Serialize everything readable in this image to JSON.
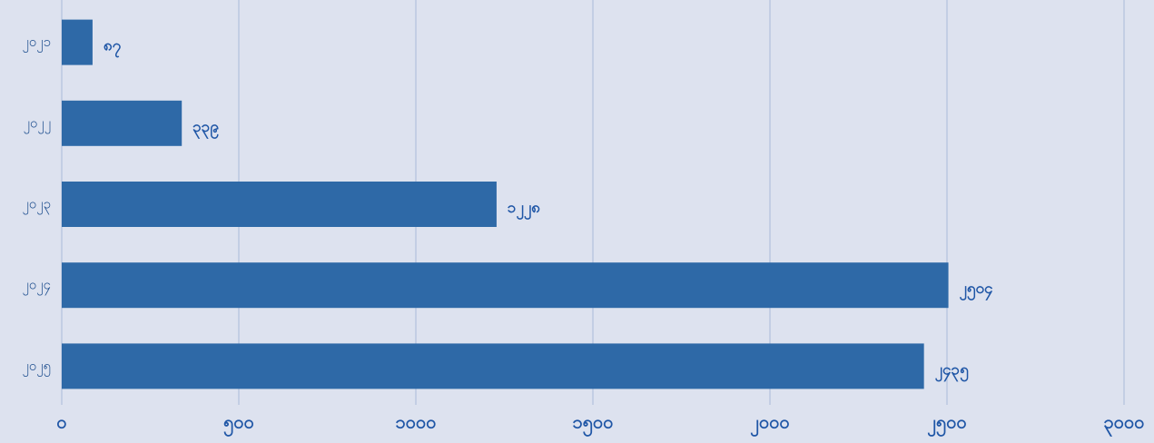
{
  "chart_data": {
    "type": "bar",
    "orientation": "horizontal",
    "categories": [
      "၂၀၂၁",
      "၂၀၂၂",
      "၂၀၂၃",
      "၂၀၂၄",
      "၂၀၂၅"
    ],
    "values": [
      87,
      339,
      1228,
      2504,
      2435
    ],
    "value_labels": [
      "၈၇",
      "၃၃၉",
      "၁၂၂၈",
      "၂၅၀၄",
      "၂၄၃၅"
    ],
    "color": "#2e69a7",
    "xlim": [
      0,
      3000
    ],
    "xticks": [
      {
        "value": 0,
        "label": "၀"
      },
      {
        "value": 500,
        "label": "၅၀၀"
      },
      {
        "value": 1000,
        "label": "၁၀၀၀"
      },
      {
        "value": 1500,
        "label": "၁၅၀၀"
      },
      {
        "value": 2000,
        "label": "၂၀၀၀"
      },
      {
        "value": 2500,
        "label": "၂၅၀၀"
      },
      {
        "value": 3000,
        "label": "၃၀၀၀"
      }
    ],
    "grid": true
  }
}
